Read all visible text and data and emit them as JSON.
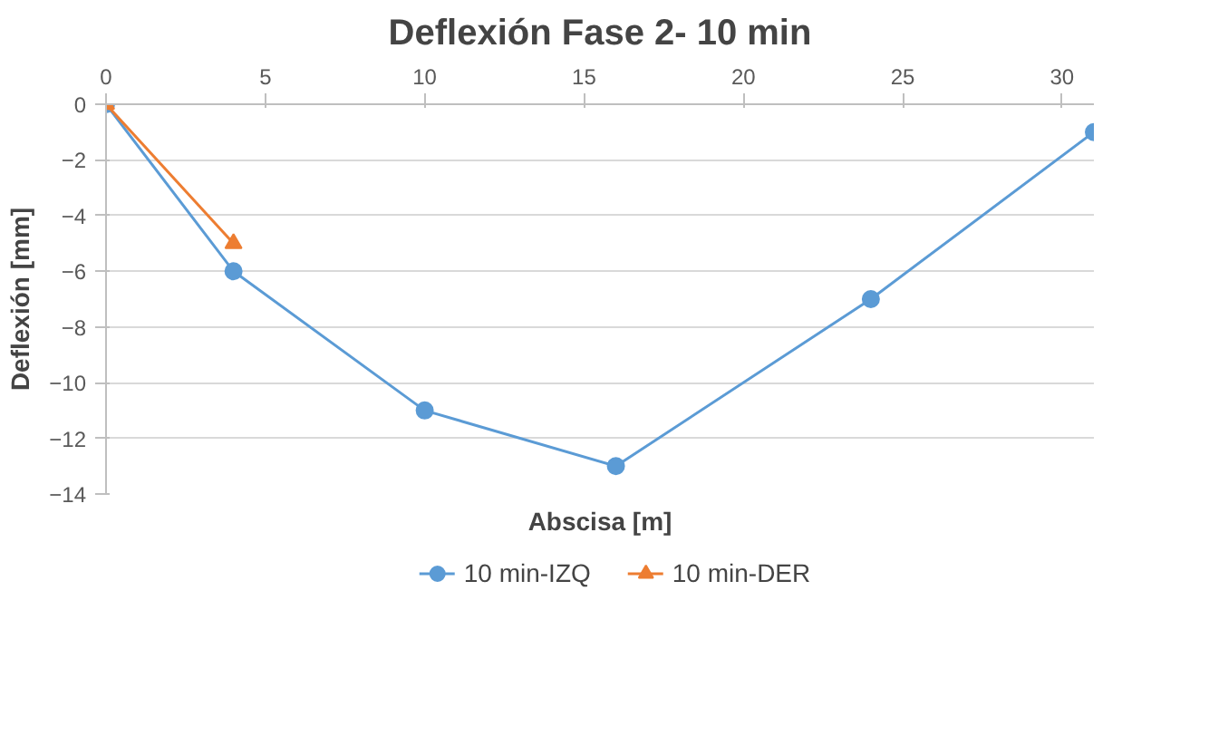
{
  "chart_data": {
    "type": "line",
    "title": "Deflexión Fase 2- 10 min",
    "xlabel": "Abscisa [m]",
    "ylabel": "Deflexión [mm]",
    "series": [
      {
        "name": "10 min-IZQ",
        "color": "#5b9bd5",
        "marker": "circle",
        "x": [
          0,
          4,
          10,
          16,
          24,
          31
        ],
        "values": [
          0,
          -6,
          -11,
          -13,
          -7,
          -1
        ]
      },
      {
        "name": "10 min-DER",
        "color": "#ed7d31",
        "marker": "triangle",
        "x": [
          0,
          4
        ],
        "values": [
          0,
          -5
        ]
      }
    ],
    "xlim": [
      0,
      31
    ],
    "xticks": [
      0,
      5,
      10,
      15,
      20,
      25,
      30
    ],
    "ylim": [
      -14,
      0
    ],
    "yticks": [
      -14,
      -12,
      -10,
      -8,
      -6,
      -4,
      -2,
      0
    ],
    "grid": "y",
    "legend": "bottom"
  }
}
